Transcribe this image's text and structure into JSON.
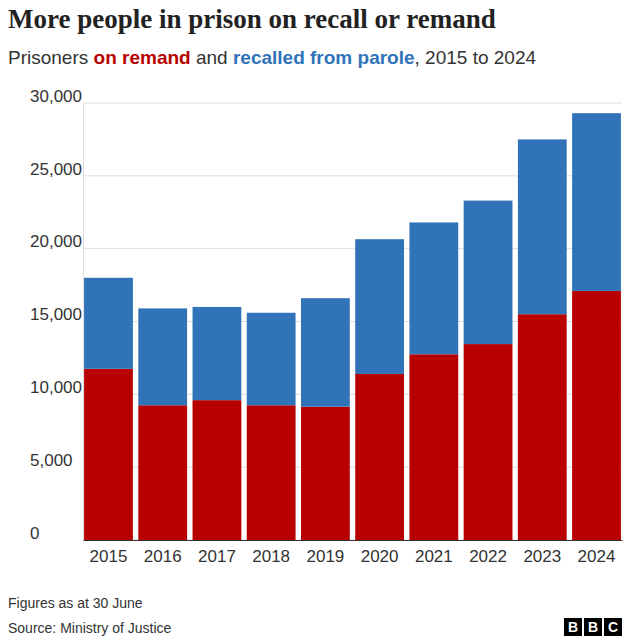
{
  "chart_data": {
    "type": "bar",
    "stacked": true,
    "grid": true,
    "title": "More people in prison on recall or remand",
    "subtitle": "Prisoners on remand and recalled from parole, 2015 to 2024",
    "note": "Figures as at 30 June",
    "source": "Source: Ministry of Justice",
    "logo": "BBC",
    "categories": [
      "2015",
      "2016",
      "2017",
      "2018",
      "2019",
      "2020",
      "2021",
      "2022",
      "2023",
      "2024"
    ],
    "series": [
      {
        "name": "on remand",
        "color": "#b80000",
        "values": [
          11750,
          9250,
          9600,
          9250,
          9150,
          11400,
          12750,
          13450,
          15500,
          17100
        ]
      },
      {
        "name": "recalled from parole",
        "color": "#3073b8",
        "values": [
          6250,
          6650,
          6400,
          6350,
          7450,
          9250,
          9050,
          9850,
          12000,
          12200
        ]
      }
    ],
    "ylim": [
      0,
      30000
    ],
    "yticks": [
      0,
      {
        "value": 5000,
        "label": "5,000"
      },
      {
        "value": 10000,
        "label": "10,000"
      },
      {
        "value": 15000,
        "label": "15,000"
      },
      {
        "value": 20000,
        "label": "20,000"
      },
      {
        "value": 25000,
        "label": "25,000"
      },
      {
        "value": 30000,
        "label": "30,000"
      }
    ]
  }
}
